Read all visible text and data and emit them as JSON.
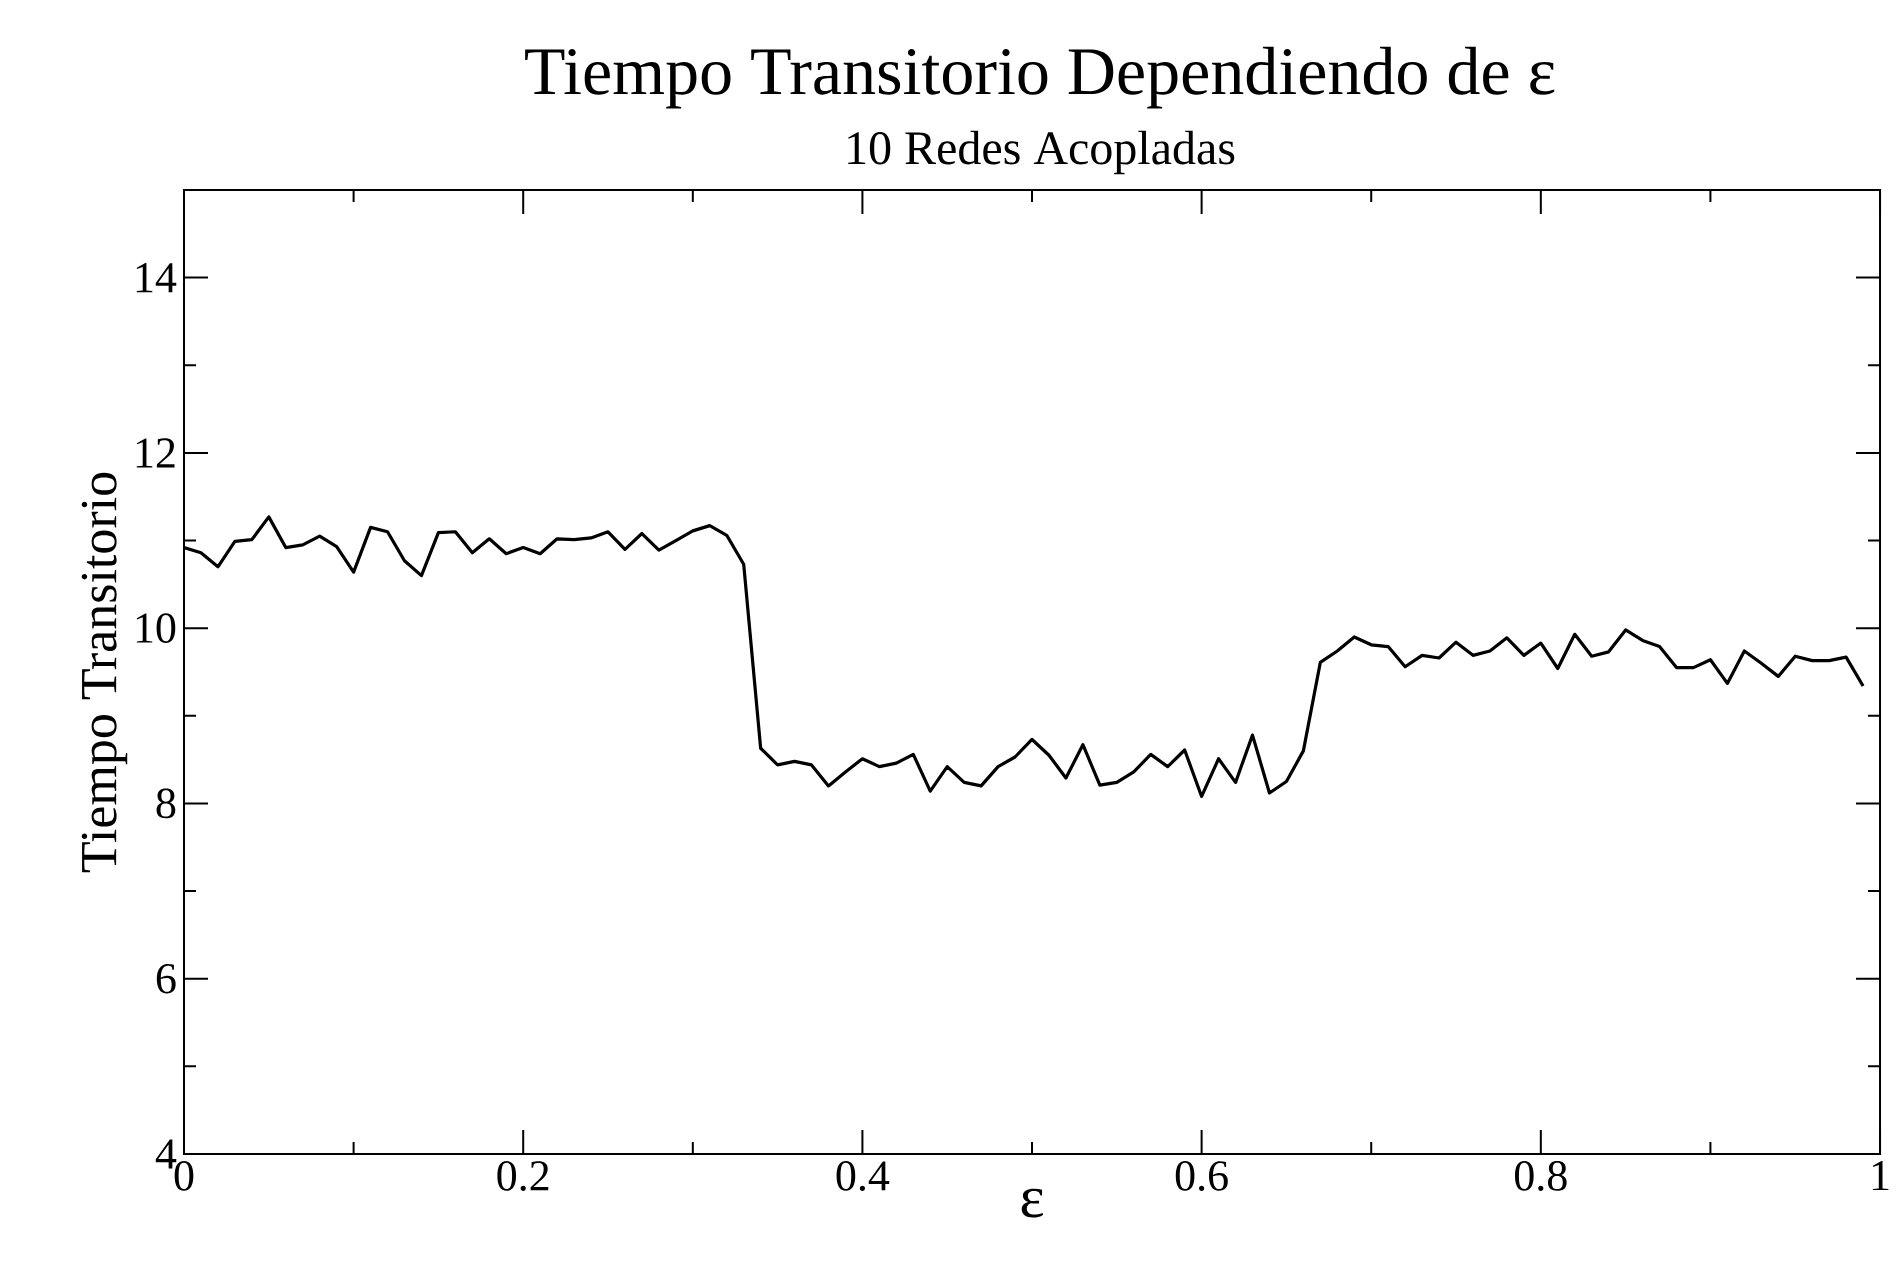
{
  "chart_data": {
    "type": "line",
    "title": "Tiempo Transitorio Dependiendo de ε",
    "subtitle": "10 Redes Acopladas",
    "xlabel": "ε",
    "ylabel": "Tiempo Transitorio",
    "x": [
      0,
      0.01,
      0.02,
      0.03,
      0.04,
      0.05,
      0.06,
      0.07,
      0.08,
      0.09,
      0.1,
      0.11,
      0.12,
      0.13,
      0.14,
      0.15,
      0.16,
      0.17,
      0.18,
      0.19,
      0.2,
      0.21,
      0.22,
      0.23,
      0.24,
      0.25,
      0.26,
      0.27,
      0.28,
      0.29,
      0.3,
      0.31,
      0.32,
      0.33,
      0.34,
      0.35,
      0.36,
      0.37,
      0.38,
      0.39,
      0.4,
      0.41,
      0.42,
      0.43,
      0.44,
      0.45,
      0.46,
      0.47,
      0.48,
      0.49,
      0.5,
      0.51,
      0.52,
      0.53,
      0.54,
      0.55,
      0.56,
      0.57,
      0.58,
      0.59,
      0.6,
      0.61,
      0.62,
      0.63,
      0.64,
      0.65,
      0.66,
      0.67,
      0.68,
      0.69,
      0.7,
      0.71,
      0.72,
      0.73,
      0.74,
      0.75,
      0.76,
      0.77,
      0.78,
      0.79,
      0.8,
      0.81,
      0.82,
      0.83,
      0.84,
      0.85,
      0.86,
      0.87,
      0.88,
      0.89,
      0.9,
      0.91,
      0.92,
      0.93,
      0.94,
      0.95,
      0.96,
      0.97,
      0.98,
      0.99
    ],
    "series": [
      {
        "color": "#000000",
        "values": [
          10.92,
          10.86,
          10.7,
          10.99,
          11.01,
          11.27,
          10.92,
          10.95,
          11.05,
          10.93,
          10.64,
          11.15,
          11.1,
          10.77,
          10.6,
          11.09,
          11.1,
          10.86,
          11.02,
          10.85,
          10.92,
          10.85,
          11.02,
          11.01,
          11.03,
          11.1,
          10.9,
          11.08,
          10.89,
          11.0,
          11.11,
          11.17,
          11.06,
          10.73,
          8.63,
          8.44,
          8.48,
          8.44,
          8.2,
          8.36,
          8.51,
          8.42,
          8.46,
          8.56,
          8.14,
          8.42,
          8.24,
          8.2,
          8.42,
          8.53,
          8.73,
          8.55,
          8.29,
          8.67,
          8.21,
          8.24,
          8.36,
          8.56,
          8.42,
          8.61,
          8.08,
          8.51,
          8.24,
          8.78,
          8.12,
          8.25,
          8.6,
          9.61,
          9.74,
          9.9,
          9.81,
          9.79,
          9.56,
          9.69,
          9.66,
          9.84,
          9.69,
          9.74,
          9.89,
          9.69,
          9.83,
          9.54,
          9.93,
          9.68,
          9.73,
          9.98,
          9.86,
          9.79,
          9.55,
          9.55,
          9.64,
          9.37,
          9.74,
          9.6,
          9.45,
          9.68,
          9.63,
          9.63,
          9.67,
          9.34
        ]
      }
    ],
    "xlim": [
      0,
      1
    ],
    "ylim": [
      4,
      15
    ],
    "xticks": [
      0,
      0.2,
      0.4,
      0.6,
      0.8,
      1
    ],
    "yticks": [
      4,
      6,
      8,
      10,
      12,
      14
    ],
    "line_style": "solid"
  }
}
